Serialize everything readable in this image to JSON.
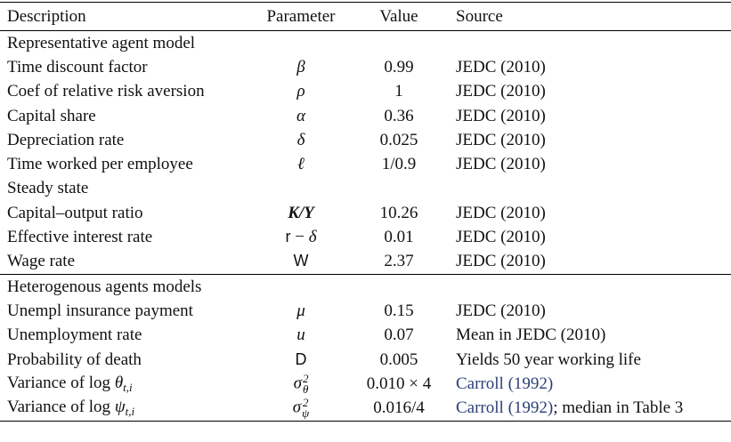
{
  "header": [
    "Description",
    "Parameter",
    "Value",
    "Source"
  ],
  "panels": [
    [
      {
        "title": "Representative agent model",
        "rows": [
          {
            "description": "Time discount factor",
            "parameter": [
              {
                "text": "β",
                "style": "italic"
              }
            ],
            "value": "0.99",
            "source": "JEDC (2010)"
          },
          {
            "description": "Coef of relative risk aversion",
            "parameter": [
              {
                "text": "ρ",
                "style": "italic"
              }
            ],
            "value": "1",
            "source": "JEDC (2010)"
          },
          {
            "description": "Capital share",
            "parameter": [
              {
                "text": "α",
                "style": "italic"
              }
            ],
            "value": "0.36",
            "source": "JEDC (2010)"
          },
          {
            "description": "Depreciation rate",
            "parameter": [
              {
                "text": "δ",
                "style": "italic"
              }
            ],
            "value": "0.025",
            "source": "JEDC (2010)"
          },
          {
            "description": "Time worked per employee",
            "parameter": [
              {
                "text": "ℓ",
                "style": "italic"
              }
            ],
            "value": "1/0.9",
            "source": "JEDC (2010)"
          }
        ]
      },
      {
        "title": "Steady state",
        "rows": [
          {
            "description": "Capital–output ratio",
            "parameter": [
              {
                "text": "K/Y",
                "style": "bolditalic"
              }
            ],
            "value": "10.26",
            "source": "JEDC (2010)"
          },
          {
            "description": "Effective interest rate",
            "parameter": [
              {
                "text": "r",
                "style": "sans"
              },
              {
                "text": " − ",
                "style": "plain"
              },
              {
                "text": "δ",
                "style": "italic"
              }
            ],
            "value": "0.01",
            "source": "JEDC (2010)"
          },
          {
            "description": "Wage rate",
            "parameter": [
              {
                "text": "W",
                "style": "sans"
              }
            ],
            "value": "2.37",
            "source": "JEDC (2010)"
          }
        ]
      }
    ],
    [
      {
        "title": "Heterogenous agents models",
        "rows": [
          {
            "description": "Unempl insurance payment",
            "parameter": [
              {
                "text": "μ",
                "style": "italic"
              }
            ],
            "value": "0.15",
            "source": "JEDC (2010)"
          },
          {
            "description": "Unemployment rate",
            "parameter": [
              {
                "text": "u",
                "style": "italic"
              }
            ],
            "value": "0.07",
            "source": "Mean in JEDC (2010)"
          },
          {
            "description": "Probability of death",
            "parameter": [
              {
                "text": "D",
                "style": "sans"
              }
            ],
            "value": "0.005",
            "source": "Yields 50 year working life"
          },
          {
            "description": [
              {
                "text": "Variance of log ",
                "style": "plain"
              },
              {
                "text": "θ",
                "style": "italic",
                "sub": "t,i"
              }
            ],
            "parameter": [
              {
                "text": "σ",
                "style": "italic",
                "sup": "2",
                "sub": "θ"
              }
            ],
            "value": "0.010 × 4",
            "source": [
              {
                "text": "Carroll (1992)",
                "style": "link"
              }
            ]
          },
          {
            "description": [
              {
                "text": "Variance of log ",
                "style": "plain"
              },
              {
                "text": "ψ",
                "style": "italic",
                "sub": "t,i"
              }
            ],
            "parameter": [
              {
                "text": "σ",
                "style": "italic",
                "sup": "2",
                "sub": "ψ"
              }
            ],
            "value": "0.016/4",
            "source": [
              {
                "text": "Carroll (1992)",
                "style": "link"
              },
              {
                "text": "; median in Table 3",
                "style": "plain"
              }
            ]
          }
        ]
      }
    ]
  ]
}
